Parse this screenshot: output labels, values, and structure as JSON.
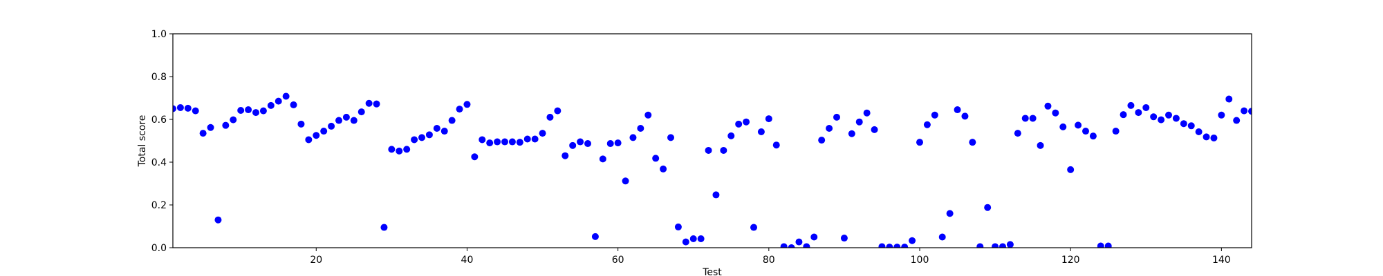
{
  "chart_data": {
    "type": "scatter",
    "xlabel": "Test",
    "ylabel": "Total score",
    "xlim": [
      1,
      144
    ],
    "ylim": [
      0.0,
      1.0
    ],
    "xticks": [
      20,
      40,
      60,
      80,
      100,
      120,
      140
    ],
    "xtick_labels": [
      "20",
      "40",
      "60",
      "80",
      "100",
      "120",
      "140"
    ],
    "yticks": [
      0.0,
      0.2,
      0.4,
      0.6,
      0.8,
      1.0
    ],
    "ytick_labels": [
      "0.0",
      "0.2",
      "0.4",
      "0.6",
      "0.8",
      "1.0"
    ],
    "grid": false,
    "marker_color": "#0000ff",
    "series": [
      {
        "x": [
          1,
          2,
          3,
          4,
          5,
          6,
          7,
          8,
          9,
          10,
          11,
          12,
          13,
          14,
          15,
          16,
          17,
          18,
          19,
          20,
          21,
          22,
          23,
          24,
          25,
          26,
          27,
          28,
          29,
          30,
          31,
          32,
          33,
          34,
          35,
          36,
          37,
          38,
          39,
          40,
          41,
          42,
          43,
          44,
          45,
          46,
          47,
          48,
          49,
          50,
          51,
          52,
          53,
          54,
          55,
          56,
          57,
          58,
          59,
          60,
          61,
          62,
          63,
          64,
          65,
          66,
          67,
          68,
          69,
          70,
          71,
          72,
          73,
          74,
          75,
          76,
          77,
          78,
          79,
          80,
          81,
          82,
          83,
          84,
          85,
          86,
          87,
          88,
          89,
          90,
          91,
          92,
          93,
          94,
          95,
          96,
          97,
          98,
          99,
          100,
          101,
          102,
          103,
          104,
          105,
          106,
          107,
          108,
          109,
          110,
          111,
          112,
          113,
          114,
          115,
          116,
          117,
          118,
          119,
          120,
          121,
          122,
          123,
          124,
          125,
          126,
          127,
          128,
          129,
          130,
          131,
          132,
          133,
          134,
          135,
          136,
          137,
          138,
          139,
          140,
          141,
          142,
          143,
          144
        ],
        "y": [
          0.65,
          0.655,
          0.652,
          0.64,
          0.535,
          0.562,
          0.13,
          0.572,
          0.598,
          0.642,
          0.645,
          0.632,
          0.64,
          0.665,
          0.685,
          0.708,
          0.668,
          0.578,
          0.505,
          0.525,
          0.545,
          0.568,
          0.595,
          0.61,
          0.595,
          0.635,
          0.675,
          0.672,
          0.095,
          0.46,
          0.452,
          0.46,
          0.505,
          0.515,
          0.528,
          0.558,
          0.545,
          0.595,
          0.648,
          0.67,
          0.425,
          0.505,
          0.49,
          0.495,
          0.495,
          0.495,
          0.493,
          0.508,
          0.508,
          0.535,
          0.61,
          0.64,
          0.43,
          0.478,
          0.495,
          0.487,
          0.052,
          0.415,
          0.487,
          0.49,
          0.312,
          0.515,
          0.558,
          0.62,
          0.418,
          0.368,
          0.515,
          0.097,
          0.027,
          0.042,
          0.042,
          0.455,
          0.247,
          0.455,
          0.523,
          0.578,
          0.588,
          0.095,
          0.542,
          0.603,
          0.48,
          0.005,
          0.0,
          0.027,
          0.005,
          0.05,
          0.503,
          0.558,
          0.61,
          0.045,
          0.533,
          0.588,
          0.63,
          0.552,
          0.005,
          0.003,
          0.003,
          0.003,
          0.033,
          0.493,
          0.575,
          0.62,
          0.05,
          0.16,
          0.645,
          0.615,
          0.493,
          0.005,
          0.188,
          0.005,
          0.005,
          0.015,
          0.535,
          0.605,
          0.605,
          0.478,
          0.662,
          0.63,
          0.565,
          0.365,
          0.573,
          0.545,
          0.522,
          0.008,
          0.008,
          0.545,
          0.622,
          0.665,
          0.632,
          0.655,
          0.612,
          0.598,
          0.62,
          0.605,
          0.58,
          0.57,
          0.542,
          0.518,
          0.513,
          0.62,
          0.695,
          0.595,
          0.64,
          0.638
        ]
      }
    ]
  }
}
